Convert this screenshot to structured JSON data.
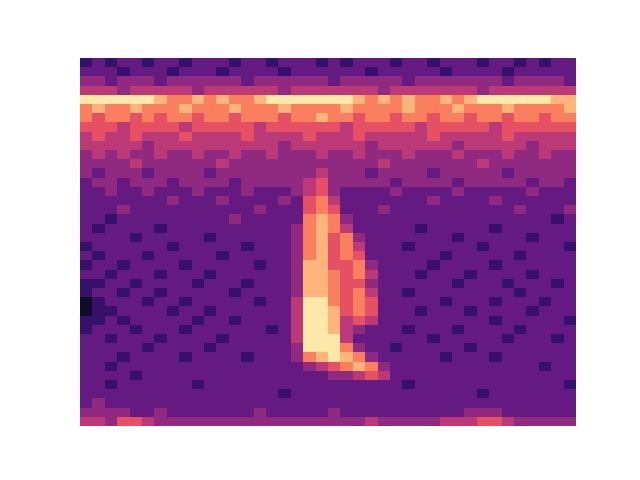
{
  "chart_data": {
    "type": "heatmap",
    "tick_labels": false,
    "values": [
      [
        2,
        3,
        2,
        3,
        3,
        2,
        3,
        3,
        2,
        3,
        3,
        3,
        2,
        3,
        3,
        2,
        3,
        3,
        3,
        2,
        3,
        2,
        3,
        3,
        3,
        2,
        3,
        3,
        2,
        3,
        3,
        3,
        2,
        3,
        3,
        2,
        3,
        2,
        3,
        3
      ],
      [
        3,
        3,
        3,
        2,
        3,
        3,
        3,
        2,
        3,
        3,
        3,
        2,
        3,
        3,
        3,
        3,
        2,
        3,
        3,
        3,
        3,
        3,
        3,
        2,
        3,
        3,
        3,
        3,
        3,
        2,
        3,
        3,
        3,
        3,
        2,
        3,
        3,
        3,
        3,
        3
      ],
      [
        4,
        4,
        3,
        4,
        4,
        4,
        3,
        4,
        4,
        4,
        4,
        4,
        4,
        3,
        4,
        4,
        4,
        4,
        4,
        4,
        3,
        4,
        4,
        4,
        4,
        4,
        3,
        4,
        4,
        4,
        4,
        4,
        4,
        4,
        3,
        4,
        4,
        4,
        4,
        3
      ],
      [
        5,
        5,
        5,
        4,
        5,
        5,
        5,
        5,
        5,
        4,
        5,
        5,
        5,
        5,
        5,
        5,
        4,
        5,
        5,
        5,
        5,
        5,
        5,
        5,
        4,
        5,
        5,
        5,
        5,
        5,
        5,
        5,
        4,
        5,
        5,
        5,
        5,
        5,
        5,
        5
      ],
      [
        9,
        9,
        9,
        9,
        9,
        9,
        8,
        7,
        7,
        8,
        7,
        8,
        7,
        7,
        8,
        9,
        9,
        9,
        9,
        9,
        9,
        9,
        8,
        7,
        8,
        7,
        8,
        7,
        7,
        8,
        7,
        8,
        9,
        9,
        9,
        9,
        9,
        9,
        8,
        8
      ],
      [
        7,
        8,
        7,
        7,
        8,
        7,
        7,
        7,
        8,
        7,
        7,
        7,
        8,
        7,
        7,
        7,
        8,
        7,
        7,
        7,
        7,
        8,
        7,
        7,
        7,
        7,
        8,
        7,
        7,
        7,
        8,
        7,
        7,
        7,
        8,
        7,
        7,
        7,
        7,
        8
      ],
      [
        7,
        6,
        7,
        7,
        6,
        7,
        6,
        7,
        7,
        6,
        7,
        7,
        6,
        7,
        7,
        7,
        6,
        7,
        7,
        8,
        7,
        7,
        6,
        7,
        7,
        6,
        7,
        7,
        6,
        7,
        7,
        6,
        7,
        7,
        6,
        7,
        7,
        6,
        7,
        7
      ],
      [
        6,
        6,
        6,
        5,
        6,
        6,
        6,
        6,
        5,
        6,
        6,
        6,
        6,
        6,
        5,
        6,
        6,
        6,
        6,
        6,
        6,
        5,
        6,
        6,
        6,
        6,
        6,
        5,
        6,
        6,
        6,
        6,
        6,
        5,
        6,
        6,
        6,
        6,
        6,
        6
      ],
      [
        5,
        6,
        5,
        5,
        6,
        5,
        5,
        5,
        6,
        5,
        5,
        5,
        5,
        6,
        5,
        5,
        5,
        5,
        6,
        5,
        5,
        5,
        6,
        5,
        5,
        5,
        5,
        5,
        6,
        5,
        5,
        5,
        5,
        5,
        6,
        5,
        5,
        5,
        5,
        5
      ],
      [
        5,
        5,
        5,
        5,
        5,
        4,
        5,
        5,
        5,
        5,
        5,
        5,
        5,
        5,
        5,
        5,
        4,
        5,
        5,
        5,
        5,
        5,
        5,
        4,
        5,
        5,
        5,
        5,
        5,
        5,
        4,
        5,
        5,
        5,
        5,
        5,
        4,
        5,
        5,
        5
      ],
      [
        4,
        5,
        4,
        5,
        4,
        4,
        5,
        4,
        4,
        5,
        4,
        4,
        5,
        4,
        4,
        5,
        4,
        4,
        4,
        5,
        4,
        4,
        5,
        4,
        4,
        4,
        5,
        4,
        4,
        4,
        5,
        4,
        4,
        4,
        5,
        4,
        4,
        5,
        4,
        4
      ],
      [
        4,
        4,
        4,
        4,
        5,
        4,
        4,
        4,
        4,
        4,
        4,
        5,
        4,
        4,
        4,
        4,
        4,
        4,
        4,
        4,
        4,
        4,
        4,
        4,
        5,
        4,
        4,
        4,
        4,
        4,
        4,
        4,
        5,
        4,
        4,
        4,
        4,
        4,
        4,
        4
      ],
      [
        4,
        3,
        4,
        4,
        4,
        3,
        4,
        4,
        4,
        4,
        3,
        4,
        4,
        4,
        4,
        4,
        4,
        4,
        4,
        5,
        4,
        4,
        4,
        3,
        4,
        4,
        4,
        4,
        3,
        4,
        4,
        4,
        4,
        4,
        3,
        4,
        4,
        4,
        4,
        4
      ],
      [
        3,
        4,
        4,
        3,
        4,
        4,
        4,
        3,
        4,
        4,
        4,
        4,
        3,
        4,
        4,
        4,
        4,
        4,
        5,
        6,
        4,
        4,
        4,
        4,
        4,
        3,
        4,
        4,
        4,
        4,
        3,
        4,
        4,
        4,
        4,
        4,
        3,
        4,
        4,
        3
      ],
      [
        3,
        3,
        4,
        3,
        3,
        4,
        3,
        3,
        3,
        4,
        3,
        3,
        3,
        4,
        3,
        3,
        3,
        4,
        5,
        6,
        4,
        3,
        3,
        3,
        3,
        4,
        3,
        3,
        3,
        3,
        4,
        3,
        3,
        3,
        3,
        3,
        4,
        3,
        3,
        3
      ],
      [
        3,
        3,
        3,
        3,
        3,
        3,
        3,
        4,
        3,
        3,
        3,
        4,
        3,
        3,
        3,
        3,
        4,
        3,
        6,
        7,
        5,
        3,
        3,
        3,
        3,
        3,
        3,
        3,
        4,
        3,
        3,
        3,
        3,
        4,
        3,
        3,
        3,
        3,
        3,
        3
      ],
      [
        3,
        3,
        3,
        4,
        3,
        3,
        3,
        3,
        3,
        3,
        3,
        3,
        3,
        3,
        4,
        3,
        3,
        3,
        6,
        7,
        6,
        3,
        3,
        3,
        4,
        3,
        3,
        3,
        3,
        3,
        3,
        3,
        3,
        3,
        3,
        4,
        3,
        3,
        3,
        4
      ],
      [
        3,
        3,
        2,
        3,
        3,
        3,
        3,
        3,
        3,
        3,
        3,
        3,
        4,
        3,
        3,
        3,
        3,
        3,
        7,
        8,
        7,
        4,
        3,
        3,
        3,
        3,
        3,
        3,
        3,
        3,
        3,
        3,
        3,
        3,
        3,
        3,
        3,
        3,
        2,
        3
      ],
      [
        3,
        2,
        3,
        3,
        3,
        3,
        2,
        3,
        3,
        3,
        3,
        3,
        3,
        3,
        3,
        3,
        3,
        4,
        7,
        8,
        7,
        5,
        3,
        3,
        3,
        3,
        3,
        2,
        3,
        3,
        3,
        3,
        3,
        2,
        3,
        3,
        3,
        3,
        3,
        3
      ],
      [
        3,
        3,
        3,
        3,
        2,
        3,
        3,
        3,
        3,
        3,
        2,
        3,
        3,
        3,
        3,
        3,
        3,
        4,
        7,
        8,
        6,
        7,
        4,
        3,
        3,
        3,
        3,
        3,
        3,
        3,
        2,
        3,
        3,
        3,
        3,
        3,
        2,
        3,
        3,
        3
      ],
      [
        2,
        3,
        3,
        3,
        3,
        3,
        3,
        2,
        3,
        3,
        3,
        3,
        3,
        2,
        3,
        3,
        3,
        4,
        7,
        8,
        6,
        7,
        5,
        3,
        3,
        3,
        2,
        3,
        3,
        3,
        3,
        3,
        2,
        3,
        3,
        3,
        3,
        3,
        3,
        2
      ],
      [
        3,
        2,
        3,
        3,
        3,
        2,
        3,
        3,
        3,
        3,
        3,
        2,
        3,
        3,
        3,
        3,
        3,
        4,
        7,
        8,
        6,
        7,
        6,
        3,
        3,
        3,
        3,
        3,
        3,
        2,
        3,
        3,
        3,
        3,
        3,
        2,
        3,
        3,
        3,
        3
      ],
      [
        2,
        3,
        3,
        2,
        3,
        3,
        3,
        3,
        2,
        3,
        3,
        3,
        3,
        3,
        2,
        3,
        3,
        4,
        8,
        8,
        6,
        6,
        7,
        4,
        3,
        3,
        3,
        3,
        2,
        3,
        3,
        3,
        3,
        2,
        3,
        3,
        3,
        3,
        3,
        3
      ],
      [
        3,
        3,
        2,
        3,
        3,
        3,
        2,
        3,
        3,
        3,
        2,
        3,
        3,
        3,
        3,
        3,
        3,
        4,
        8,
        8,
        7,
        6,
        7,
        5,
        3,
        3,
        3,
        2,
        3,
        3,
        3,
        2,
        3,
        3,
        3,
        3,
        2,
        3,
        3,
        3
      ],
      [
        2,
        2,
        3,
        3,
        2,
        3,
        3,
        3,
        3,
        2,
        3,
        3,
        3,
        2,
        3,
        3,
        3,
        4,
        8,
        8,
        7,
        6,
        6,
        4,
        3,
        3,
        3,
        3,
        3,
        3,
        2,
        3,
        3,
        3,
        2,
        3,
        3,
        3,
        2,
        3
      ],
      [
        2,
        3,
        3,
        2,
        3,
        3,
        2,
        3,
        3,
        3,
        3,
        3,
        2,
        3,
        3,
        3,
        3,
        4,
        8,
        8,
        7,
        6,
        7,
        5,
        3,
        3,
        2,
        3,
        3,
        3,
        3,
        3,
        3,
        3,
        3,
        2,
        3,
        3,
        3,
        3
      ],
      [
        1,
        2,
        3,
        3,
        3,
        2,
        3,
        3,
        2,
        3,
        3,
        3,
        3,
        3,
        2,
        3,
        3,
        5,
        9,
        9,
        7,
        6,
        7,
        6,
        3,
        3,
        3,
        3,
        3,
        2,
        3,
        3,
        3,
        2,
        3,
        3,
        3,
        2,
        3,
        3
      ],
      [
        1,
        2,
        2,
        3,
        3,
        3,
        3,
        2,
        3,
        3,
        2,
        3,
        3,
        3,
        3,
        3,
        3,
        5,
        9,
        9,
        8,
        6,
        7,
        6,
        3,
        3,
        3,
        2,
        3,
        3,
        3,
        2,
        3,
        3,
        3,
        3,
        2,
        3,
        3,
        3
      ],
      [
        2,
        2,
        3,
        2,
        3,
        3,
        3,
        3,
        3,
        2,
        3,
        3,
        2,
        3,
        3,
        3,
        3,
        5,
        9,
        9,
        8,
        5,
        6,
        5,
        3,
        3,
        3,
        3,
        3,
        3,
        3,
        3,
        3,
        2,
        3,
        3,
        3,
        3,
        3,
        2
      ],
      [
        2,
        3,
        3,
        3,
        2,
        3,
        3,
        3,
        2,
        3,
        3,
        3,
        3,
        3,
        3,
        2,
        3,
        5,
        9,
        9,
        8,
        5,
        4,
        3,
        3,
        3,
        2,
        3,
        3,
        3,
        2,
        3,
        3,
        3,
        3,
        2,
        3,
        3,
        3,
        3
      ],
      [
        3,
        3,
        2,
        3,
        3,
        3,
        2,
        3,
        3,
        3,
        3,
        2,
        3,
        3,
        3,
        3,
        3,
        5,
        9,
        9,
        9,
        5,
        3,
        3,
        3,
        3,
        3,
        3,
        2,
        3,
        3,
        3,
        3,
        3,
        2,
        3,
        3,
        3,
        2,
        3
      ],
      [
        3,
        3,
        3,
        3,
        3,
        2,
        3,
        3,
        3,
        3,
        2,
        3,
        3,
        3,
        3,
        3,
        3,
        4,
        9,
        9,
        9,
        7,
        4,
        3,
        3,
        2,
        3,
        3,
        3,
        3,
        3,
        2,
        3,
        3,
        3,
        3,
        3,
        3,
        3,
        3
      ],
      [
        3,
        3,
        3,
        2,
        3,
        3,
        3,
        3,
        2,
        3,
        3,
        3,
        3,
        2,
        3,
        3,
        3,
        4,
        7,
        8,
        9,
        8,
        7,
        4,
        3,
        3,
        3,
        3,
        3,
        2,
        3,
        3,
        3,
        2,
        3,
        3,
        3,
        3,
        3,
        3
      ],
      [
        3,
        3,
        2,
        3,
        3,
        3,
        3,
        3,
        3,
        3,
        3,
        3,
        3,
        3,
        3,
        3,
        3,
        3,
        4,
        5,
        6,
        7,
        8,
        7,
        4,
        3,
        3,
        3,
        3,
        3,
        3,
        3,
        3,
        3,
        3,
        3,
        3,
        2,
        3,
        3
      ],
      [
        3,
        3,
        3,
        3,
        2,
        3,
        3,
        3,
        3,
        3,
        3,
        3,
        3,
        3,
        3,
        3,
        3,
        3,
        3,
        3,
        4,
        4,
        5,
        6,
        5,
        3,
        3,
        3,
        3,
        3,
        3,
        3,
        3,
        3,
        3,
        3,
        3,
        3,
        3,
        3
      ],
      [
        3,
        3,
        2,
        3,
        3,
        3,
        3,
        3,
        3,
        2,
        3,
        3,
        3,
        3,
        3,
        3,
        3,
        3,
        3,
        3,
        3,
        3,
        3,
        3,
        3,
        3,
        2,
        3,
        3,
        3,
        3,
        3,
        3,
        3,
        3,
        3,
        3,
        3,
        3,
        2
      ],
      [
        3,
        3,
        3,
        3,
        3,
        3,
        3,
        3,
        3,
        3,
        3,
        3,
        3,
        3,
        3,
        3,
        2,
        3,
        3,
        3,
        3,
        3,
        3,
        3,
        3,
        3,
        3,
        3,
        3,
        3,
        3,
        3,
        2,
        3,
        3,
        3,
        3,
        3,
        3,
        3
      ],
      [
        3,
        4,
        3,
        3,
        3,
        3,
        3,
        3,
        3,
        3,
        3,
        3,
        3,
        3,
        3,
        3,
        3,
        3,
        3,
        3,
        3,
        3,
        3,
        3,
        3,
        3,
        3,
        3,
        3,
        3,
        3,
        3,
        3,
        3,
        3,
        3,
        3,
        3,
        3,
        3
      ],
      [
        4,
        4,
        4,
        4,
        3,
        3,
        4,
        3,
        3,
        3,
        3,
        3,
        3,
        3,
        4,
        3,
        3,
        3,
        3,
        3,
        4,
        3,
        3,
        3,
        3,
        3,
        3,
        3,
        3,
        3,
        3,
        4,
        4,
        4,
        3,
        3,
        3,
        3,
        3,
        3
      ],
      [
        5,
        5,
        4,
        6,
        6,
        5,
        4,
        4,
        4,
        4,
        4,
        4,
        4,
        4,
        4,
        4,
        4,
        4,
        4,
        4,
        4,
        4,
        4,
        5,
        4,
        4,
        4,
        4,
        4,
        5,
        5,
        5,
        6,
        6,
        5,
        4,
        4,
        4,
        4,
        4
      ]
    ]
  }
}
